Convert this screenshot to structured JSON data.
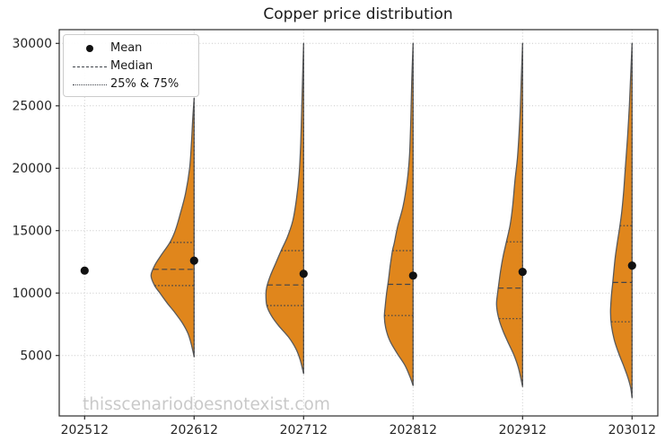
{
  "chart_data": {
    "type": "violin",
    "title": "Copper price distribution",
    "watermark": "thisscenariodoesnotexist.com",
    "legend_position": "upper-left",
    "legend": {
      "mean": "Mean",
      "median": "Median",
      "quartiles": "25% & 75%"
    },
    "xlabel": "",
    "ylabel": "",
    "x_categories": [
      "202512",
      "202612",
      "202712",
      "202812",
      "202912",
      "203012"
    ],
    "yticks": [
      5000,
      10000,
      15000,
      20000,
      25000,
      30000
    ],
    "ylim": [
      400,
      31100
    ],
    "grid": true,
    "violin_side": "left",
    "colors": {
      "violin_fill": "#e0861c",
      "violin_edge": "#5a5a5a",
      "stat_line": "#3f434a",
      "mean_dot": "#111111",
      "grid": "#c9c9c9",
      "spine": "#2b2b2b",
      "tick_label": "#262626",
      "watermark": "#c9c9c9"
    },
    "series": [
      {
        "category": "202512",
        "mean": 11800,
        "median": null,
        "q25": null,
        "q75": null,
        "min": null,
        "max": null,
        "profile": null
      },
      {
        "category": "202612",
        "mean": 12600,
        "median": 11900,
        "q25": 10600,
        "q75": 14050,
        "min": 4900,
        "max": 25600,
        "profile": [
          [
            25600,
            0
          ],
          [
            24000,
            1.5
          ],
          [
            22000,
            3
          ],
          [
            20000,
            5
          ],
          [
            18000,
            9.5
          ],
          [
            16200,
            16
          ],
          [
            15000,
            21
          ],
          [
            14050,
            27
          ],
          [
            13000,
            37
          ],
          [
            12200,
            44
          ],
          [
            11400,
            48
          ],
          [
            10600,
            44
          ],
          [
            10000,
            38
          ],
          [
            9200,
            30
          ],
          [
            8400,
            21
          ],
          [
            7600,
            13
          ],
          [
            6800,
            7
          ],
          [
            6000,
            3.5
          ],
          [
            5400,
            1.5
          ],
          [
            4900,
            0
          ]
        ]
      },
      {
        "category": "202712",
        "mean": 11550,
        "median": 10650,
        "q25": 9000,
        "q75": 13400,
        "min": 3550,
        "max": 30000,
        "profile": [
          [
            30000,
            0
          ],
          [
            27500,
            1
          ],
          [
            25000,
            2
          ],
          [
            22000,
            3.2
          ],
          [
            19500,
            5
          ],
          [
            17500,
            8
          ],
          [
            15800,
            12
          ],
          [
            14500,
            18
          ],
          [
            13400,
            25
          ],
          [
            12400,
            31
          ],
          [
            11400,
            37
          ],
          [
            10500,
            41
          ],
          [
            9900,
            42
          ],
          [
            9000,
            41
          ],
          [
            8200,
            36
          ],
          [
            7400,
            28
          ],
          [
            6500,
            17
          ],
          [
            5600,
            9
          ],
          [
            4700,
            4
          ],
          [
            3550,
            0
          ]
        ]
      },
      {
        "category": "202812",
        "mean": 11400,
        "median": 10700,
        "q25": 8200,
        "q75": 13400,
        "min": 2600,
        "max": 30000,
        "profile": [
          [
            30000,
            0
          ],
          [
            27000,
            1.5
          ],
          [
            24000,
            2.5
          ],
          [
            21000,
            4
          ],
          [
            19000,
            6.5
          ],
          [
            17000,
            11
          ],
          [
            15400,
            17
          ],
          [
            14000,
            21
          ],
          [
            13400,
            23
          ],
          [
            12200,
            25.5
          ],
          [
            11000,
            27.5
          ],
          [
            10000,
            29.5
          ],
          [
            9000,
            31
          ],
          [
            8100,
            32
          ],
          [
            7200,
            30.5
          ],
          [
            6200,
            26
          ],
          [
            5200,
            18
          ],
          [
            4200,
            9
          ],
          [
            3300,
            3.5
          ],
          [
            2600,
            0
          ]
        ]
      },
      {
        "category": "202912",
        "mean": 11700,
        "median": 10400,
        "q25": 7950,
        "q75": 14100,
        "min": 2500,
        "max": 30000,
        "profile": [
          [
            30000,
            0
          ],
          [
            27000,
            1.5
          ],
          [
            24000,
            3
          ],
          [
            21000,
            5.5
          ],
          [
            19000,
            8.5
          ],
          [
            17000,
            11
          ],
          [
            15400,
            14
          ],
          [
            14100,
            18
          ],
          [
            13000,
            21.5
          ],
          [
            12000,
            24
          ],
          [
            11000,
            26
          ],
          [
            10000,
            27.8
          ],
          [
            9100,
            29
          ],
          [
            8100,
            27
          ],
          [
            7100,
            22.5
          ],
          [
            6100,
            16.5
          ],
          [
            5100,
            10
          ],
          [
            4100,
            5
          ],
          [
            3200,
            2
          ],
          [
            2500,
            0
          ]
        ]
      },
      {
        "category": "203012",
        "mean": 12200,
        "median": 10850,
        "q25": 7700,
        "q75": 15400,
        "min": 1600,
        "max": 30000,
        "profile": [
          [
            30000,
            0
          ],
          [
            27500,
            1.5
          ],
          [
            25000,
            3
          ],
          [
            22500,
            5
          ],
          [
            20000,
            7.5
          ],
          [
            18000,
            9.5
          ],
          [
            16500,
            11.5
          ],
          [
            15400,
            13.5
          ],
          [
            14000,
            16.5
          ],
          [
            13000,
            18.5
          ],
          [
            12000,
            20
          ],
          [
            10850,
            21.5
          ],
          [
            9800,
            23
          ],
          [
            8500,
            24
          ],
          [
            7400,
            23
          ],
          [
            6300,
            20
          ],
          [
            5200,
            15
          ],
          [
            4200,
            9.5
          ],
          [
            3200,
            4.5
          ],
          [
            2400,
            1.5
          ],
          [
            1600,
            0
          ]
        ]
      }
    ]
  }
}
